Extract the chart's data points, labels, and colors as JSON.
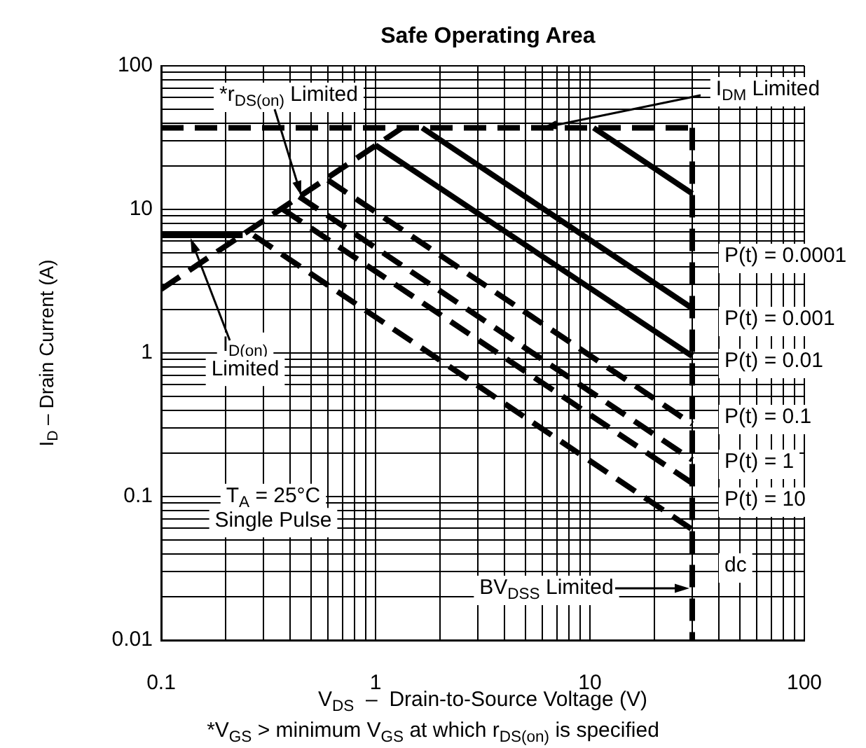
{
  "chart_data": {
    "type": "line",
    "title": "Safe Operating Area",
    "xlabel": "V$_{DS}$  –  Drain-to-Source Voltage (V)",
    "ylabel": "I$_{D}$ – Drain Current (A)",
    "log": "xy",
    "grid": true,
    "xlim": [
      0.1,
      100
    ],
    "ylim": [
      0.01,
      100
    ],
    "xticks": [
      0.1,
      {
        "value": 0.2,
        "label": null
      },
      {
        "value": 0.3,
        "label": null
      },
      {
        "value": 0.4,
        "label": null
      },
      {
        "value": 0.5,
        "label": null
      },
      {
        "value": 0.6,
        "label": null
      },
      {
        "value": 0.7,
        "label": null
      },
      {
        "value": 0.8,
        "label": null
      },
      {
        "value": 0.9,
        "label": null
      },
      1,
      {
        "value": 2,
        "label": null
      },
      {
        "value": 3,
        "label": null
      },
      {
        "value": 4,
        "label": null
      },
      {
        "value": 5,
        "label": null
      },
      {
        "value": 6,
        "label": null
      },
      {
        "value": 7,
        "label": null
      },
      {
        "value": 8,
        "label": null
      },
      {
        "value": 9,
        "label": null
      },
      10,
      {
        "value": 20,
        "label": null
      },
      {
        "value": 30,
        "label": null
      },
      {
        "value": 40,
        "label": null
      },
      {
        "value": 50,
        "label": null
      },
      {
        "value": 60,
        "label": null
      },
      {
        "value": 70,
        "label": null
      },
      {
        "value": 80,
        "label": null
      },
      {
        "value": 90,
        "label": null
      },
      100
    ],
    "yticks": [
      0.01,
      {
        "value": 0.02,
        "label": null
      },
      {
        "value": 0.03,
        "label": null
      },
      {
        "value": 0.04,
        "label": null
      },
      {
        "value": 0.05,
        "label": null
      },
      {
        "value": 0.06,
        "label": null
      },
      {
        "value": 0.07,
        "label": null
      },
      {
        "value": 0.08,
        "label": null
      },
      {
        "value": 0.09,
        "label": null
      },
      0.1,
      {
        "value": 0.2,
        "label": null
      },
      {
        "value": 0.3,
        "label": null
      },
      {
        "value": 0.4,
        "label": null
      },
      {
        "value": 0.5,
        "label": null
      },
      {
        "value": 0.6,
        "label": null
      },
      {
        "value": 0.7,
        "label": null
      },
      {
        "value": 0.8,
        "label": null
      },
      {
        "value": 0.9,
        "label": null
      },
      1,
      {
        "value": 2,
        "label": null
      },
      {
        "value": 3,
        "label": null
      },
      {
        "value": 4,
        "label": null
      },
      {
        "value": 5,
        "label": null
      },
      {
        "value": 6,
        "label": null
      },
      {
        "value": 7,
        "label": null
      },
      {
        "value": 8,
        "label": null
      },
      {
        "value": 9,
        "label": null
      },
      10,
      {
        "value": 20,
        "label": null
      },
      {
        "value": 30,
        "label": null
      },
      {
        "value": 40,
        "label": null
      },
      {
        "value": 50,
        "label": null
      },
      {
        "value": 60,
        "label": null
      },
      {
        "value": 70,
        "label": null
      },
      {
        "value": 80,
        "label": null
      },
      {
        "value": 90,
        "label": null
      },
      100
    ],
    "series": [
      {
        "color": "#000000",
        "line_style": "dashed",
        "x": [
          0.1,
          30
        ],
        "values": [
          37,
          37
        ]
      },
      {
        "color": "#000000",
        "line_style": "dashed",
        "x": [
          30,
          30
        ],
        "values": [
          37,
          0.01
        ]
      },
      {
        "color": "#000000",
        "line_style": "dashed",
        "x": [
          0.1,
          1.33
        ],
        "values": [
          2.78,
          37
        ]
      },
      {
        "color": "#000000",
        "line_style": "solid",
        "x": [
          0.1,
          0.24
        ],
        "values": [
          6.6,
          6.6
        ]
      },
      {
        "name": "P(t) = 0.0001",
        "color": "#000000",
        "line_style": "solid",
        "x": [
          10.4,
          30
        ],
        "values": [
          37,
          12.9
        ]
      },
      {
        "name": "P(t) = 0.001",
        "color": "#000000",
        "line_style": "solid",
        "x": [
          1.65,
          30
        ],
        "values": [
          37,
          2.05
        ]
      },
      {
        "name": "P(t) = 0.01",
        "color": "#000000",
        "line_style": "solid",
        "x": [
          1.0,
          30
        ],
        "values": [
          28,
          0.95
        ]
      },
      {
        "name": "P(t) = 0.1",
        "color": "#000000",
        "line_style": "dashed",
        "x": [
          0.6,
          30
        ],
        "values": [
          16,
          0.32
        ]
      },
      {
        "name": "P(t) = 1",
        "color": "#000000",
        "line_style": "dashed",
        "x": [
          0.44,
          30
        ],
        "values": [
          12.3,
          0.18
        ]
      },
      {
        "name": "P(t) = 10",
        "color": "#000000",
        "line_style": "dashed",
        "x": [
          0.37,
          30
        ],
        "values": [
          10,
          0.124
        ]
      },
      {
        "name": "dc",
        "color": "#000000",
        "line_style": "dashed",
        "x": [
          0.27,
          30
        ],
        "values": [
          6.6,
          0.059
        ]
      }
    ],
    "annotations": [
      {
        "text": "*r$_{DS(on)}$ Limited",
        "x": 0.45,
        "y": 12.5
      },
      {
        "text": "I$_{DM}$ Limited",
        "x": 6,
        "y": 37
      },
      "I$_{D(on)}$\nLimited",
      "BV$_{DSS}$ Limited",
      "T$_{A}$ = 25°C\nSingle Pulse",
      "*V$_{GS}$ > minimum V$_{GS}$ at which r$_{DS(on)}$ is specified"
    ]
  }
}
